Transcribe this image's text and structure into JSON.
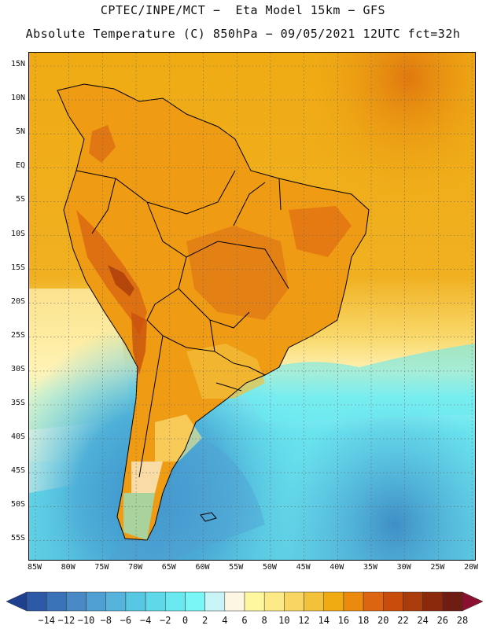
{
  "header": {
    "line1": "CPTEC/INPE/MCT −  Eta Model 15km − GFS",
    "line2": "Absolute Temperature (C) 850hPa − 09/05/2021 12UTC fct=32h"
  },
  "map": {
    "lat_labels": [
      "15N",
      "10N",
      "5N",
      "EQ",
      "5S",
      "10S",
      "15S",
      "20S",
      "25S",
      "30S",
      "35S",
      "40S",
      "45S",
      "50S",
      "55S"
    ],
    "lon_labels": [
      "85W",
      "80W",
      "75W",
      "70W",
      "65W",
      "60W",
      "55W",
      "50W",
      "45W",
      "40W",
      "35W",
      "30W",
      "25W",
      "20W"
    ],
    "grid": "dotted"
  },
  "colorbar": {
    "labels": [
      "-14",
      "-12",
      "-10",
      "-8",
      "-6",
      "-4",
      "-2",
      "0",
      "2",
      "4",
      "6",
      "8",
      "10",
      "12",
      "14",
      "16",
      "18",
      "20",
      "22",
      "24",
      "26",
      "28"
    ],
    "colors": [
      "#1f3f8f",
      "#2d5aa6",
      "#3a72b8",
      "#4889c6",
      "#4f9fd2",
      "#55b3dc",
      "#58c7e4",
      "#5fd9ea",
      "#69e9ef",
      "#7af6f6",
      "#c8f4f8",
      "#fdf6e2",
      "#fff6a0",
      "#fde985",
      "#f9d564",
      "#f4c13b",
      "#f0ab13",
      "#ec8a10",
      "#dd6410",
      "#c84d0c",
      "#a93c0a",
      "#8a2a0a",
      "#6f1d12",
      "#8b1030"
    ]
  }
}
